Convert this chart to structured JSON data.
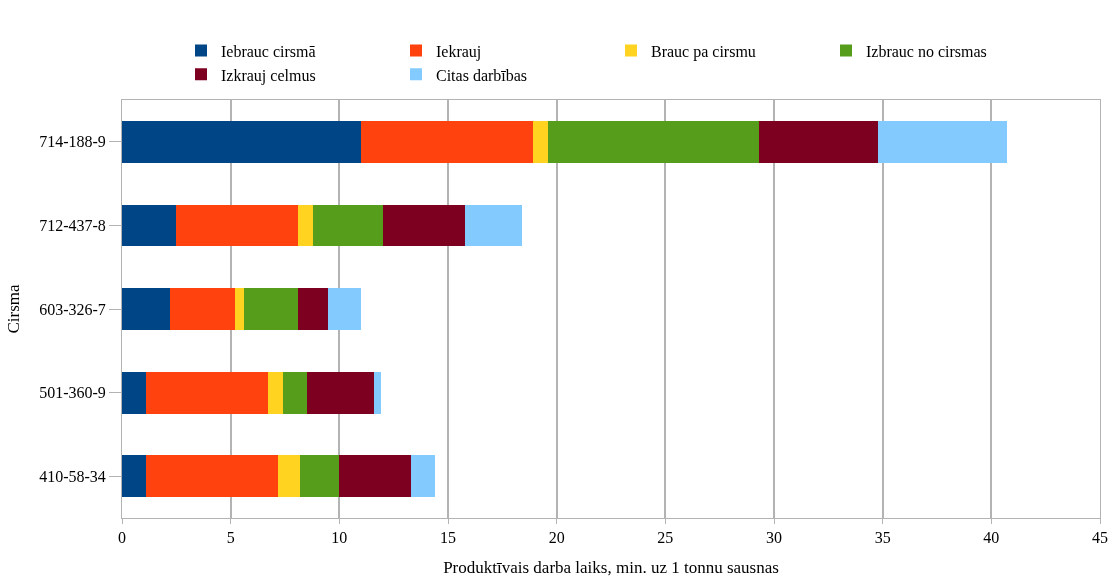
{
  "chart_data": {
    "type": "bar",
    "orientation": "horizontal",
    "stacked": true,
    "xlabel": "Produktīvais darba laiks, min. uz 1 tonnu sausnas",
    "ylabel": "Cirsma",
    "categories": [
      "714-188-9",
      "712-437-8",
      "603-326-7",
      "501-360-9",
      "410-58-34"
    ],
    "series": [
      {
        "name": "Iebrauc cirsmā",
        "color": "#004586",
        "values": [
          11.0,
          2.5,
          2.2,
          1.1,
          1.1
        ]
      },
      {
        "name": "Iekrauj",
        "color": "#ff420e",
        "values": [
          7.9,
          5.6,
          3.0,
          5.6,
          6.1
        ]
      },
      {
        "name": "Brauc pa cirsmu",
        "color": "#ffd320",
        "values": [
          0.7,
          0.7,
          0.4,
          0.7,
          1.0
        ]
      },
      {
        "name": "Izbrauc no cirsmas",
        "color": "#579d1c",
        "values": [
          9.7,
          3.2,
          2.5,
          1.1,
          1.8
        ]
      },
      {
        "name": "Izkrauj celmus",
        "color": "#7e0021",
        "values": [
          5.5,
          3.8,
          1.4,
          3.1,
          3.3
        ]
      },
      {
        "name": "Citas darbības",
        "color": "#83caff",
        "values": [
          5.9,
          2.6,
          1.5,
          0.3,
          1.1
        ]
      }
    ],
    "xlim": [
      0,
      45
    ],
    "xticks": [
      0,
      5,
      10,
      15,
      20,
      25,
      30,
      35,
      40,
      45
    ],
    "grid": "x",
    "legend": "top"
  }
}
